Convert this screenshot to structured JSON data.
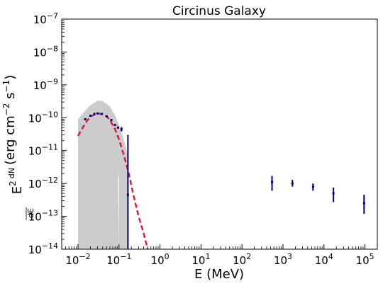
{
  "chart_data": {
    "type": "scatter",
    "title": "Circinus Galaxy",
    "xlabel": "E (MeV)",
    "ylabel_parts": {
      "prefix": "E",
      "exp2": "2",
      "frac_num": "dN",
      "frac_den": "dE",
      "units_open": "(erg cm",
      "exp_m2": "−2",
      "units_mid": " s",
      "exp_m1": "−1",
      "units_close": ")"
    },
    "xscale": "log",
    "yscale": "log",
    "xlim": [
      0.004,
      200000
    ],
    "ylim": [
      1e-14,
      1e-07
    ],
    "x_ticks": [
      {
        "label_base": "10",
        "label_exp": "−2"
      },
      {
        "label_base": "10",
        "label_exp": "−1"
      },
      {
        "label_base": "10",
        "label_exp": "0"
      },
      {
        "label_base": "10",
        "label_exp": "1"
      },
      {
        "label_base": "10",
        "label_exp": "2"
      },
      {
        "label_base": "10",
        "label_exp": "3"
      },
      {
        "label_base": "10",
        "label_exp": "4"
      },
      {
        "label_base": "10",
        "label_exp": "5"
      }
    ],
    "y_ticks": [
      {
        "label_base": "10",
        "label_exp": "−14"
      },
      {
        "label_base": "10",
        "label_exp": "−13"
      },
      {
        "label_base": "10",
        "label_exp": "−12"
      },
      {
        "label_base": "10",
        "label_exp": "−11"
      },
      {
        "label_base": "10",
        "label_exp": "−10"
      },
      {
        "label_base": "10",
        "label_exp": "−9"
      },
      {
        "label_base": "10",
        "label_exp": "−8"
      },
      {
        "label_base": "10",
        "label_exp": "−7"
      }
    ],
    "colors": {
      "band": "#cccccc",
      "model": "#dc143c",
      "data": "#000080",
      "axes": "#000000"
    },
    "uncertainty_band": {
      "upper": [
        [
          0.01,
          9e-11
        ],
        [
          0.014,
          1.5e-10
        ],
        [
          0.02,
          2.4e-10
        ],
        [
          0.03,
          3.3e-10
        ],
        [
          0.04,
          3.2e-10
        ],
        [
          0.06,
          2.2e-10
        ],
        [
          0.08,
          1.2e-10
        ],
        [
          0.1,
          6e-11
        ],
        [
          0.12,
          3e-11
        ],
        [
          0.15,
          1.2e-11
        ],
        [
          0.17,
          5e-12
        ]
      ],
      "lower": [
        [
          0.17,
          1e-14
        ],
        [
          0.1,
          1e-14
        ],
        [
          0.1,
          2e-12
        ],
        [
          0.095,
          1.4e-12
        ],
        [
          0.1,
          1e-14
        ],
        [
          0.01,
          1e-14
        ]
      ]
    },
    "model_curve": [
      [
        0.01,
        2.8e-11
      ],
      [
        0.013,
        5e-11
      ],
      [
        0.017,
        8.5e-11
      ],
      [
        0.022,
        1.15e-10
      ],
      [
        0.03,
        1.35e-10
      ],
      [
        0.04,
        1.3e-10
      ],
      [
        0.05,
        1.1e-10
      ],
      [
        0.06,
        8.5e-11
      ],
      [
        0.08,
        4.5e-11
      ],
      [
        0.1,
        2.2e-11
      ],
      [
        0.13,
        7.5e-12
      ],
      [
        0.17,
        2.2e-12
      ],
      [
        0.22,
        5e-13
      ],
      [
        0.3,
        1e-13
      ],
      [
        0.4,
        3e-14
      ],
      [
        0.5,
        1e-14
      ]
    ],
    "data_points": [
      {
        "x": 0.015,
        "y": 9e-11
      },
      {
        "x": 0.02,
        "y": 1.15e-10
      },
      {
        "x": 0.025,
        "y": 1.3e-10
      },
      {
        "x": 0.03,
        "y": 1.35e-10
      },
      {
        "x": 0.038,
        "y": 1.3e-10
      },
      {
        "x": 0.05,
        "y": 1.1e-10
      },
      {
        "x": 0.065,
        "y": 8.5e-11
      },
      {
        "x": 0.08,
        "y": 6e-11
      },
      {
        "x": 0.095,
        "y": 5e-11
      },
      {
        "x": 0.115,
        "y": 4.5e-11,
        "ylo": 3.8e-11,
        "yhi": 5.2e-11
      },
      {
        "x": 0.165,
        "y": 4.5e-13,
        "ylo": 1e-14,
        "yhi": 3e-11
      },
      {
        "x": 540,
        "y": 1.1e-12,
        "ylo": 6e-13,
        "yhi": 1.7e-12
      },
      {
        "x": 1700,
        "y": 1e-12,
        "ylo": 8e-13,
        "yhi": 1.3e-12
      },
      {
        "x": 5400,
        "y": 8e-13,
        "ylo": 6e-13,
        "yhi": 1e-12
      },
      {
        "x": 17000,
        "y": 5e-13,
        "ylo": 2.7e-13,
        "yhi": 7.5e-13
      },
      {
        "x": 95000,
        "y": 2.5e-13,
        "ylo": 1.2e-13,
        "yhi": 4.5e-13
      }
    ]
  }
}
